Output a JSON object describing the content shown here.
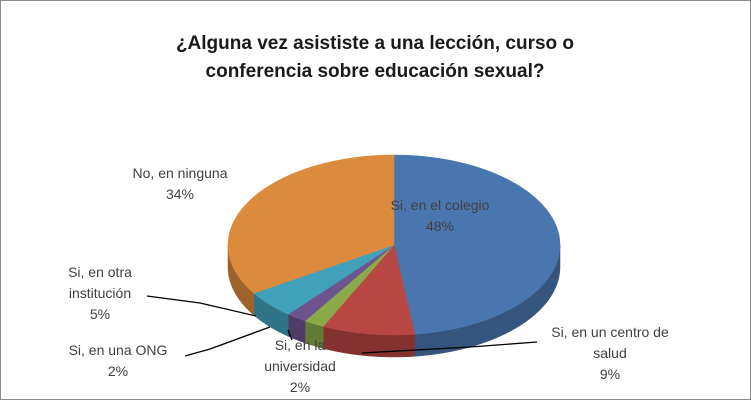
{
  "chart_data": {
    "type": "pie3d",
    "title": "¿Alguna vez asististe a una lección, curso o conferencia sobre educación sexual?",
    "categories": [
      "Si, en el colegio",
      "Si, en un centro de salud",
      "Si, en la universidad",
      "Si, en una ONG",
      "Si, en otra institución",
      "No, en ninguna"
    ],
    "values": [
      48,
      9,
      2,
      2,
      5,
      34
    ],
    "value_labels": [
      "48%",
      "9%",
      "2%",
      "2%",
      "5%",
      "34%"
    ],
    "colors": [
      "#4a76b0",
      "#b84643",
      "#8aaa4a",
      "#6e548f",
      "#41a0ba",
      "#dc8a3c"
    ]
  }
}
